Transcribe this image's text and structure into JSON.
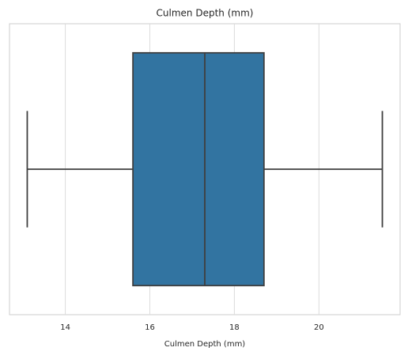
{
  "chart_data": {
    "type": "box",
    "title": "Culmen Depth (mm)",
    "xlabel": "Culmen Depth (mm)",
    "whislo": 13.1,
    "q1": 15.6,
    "median": 17.3,
    "q3": 18.7,
    "whishi": 21.5,
    "color": "#3274a1",
    "xlim": [
      12.68,
      21.92
    ],
    "xticks": [
      14,
      16,
      18,
      20
    ],
    "grid": true
  }
}
